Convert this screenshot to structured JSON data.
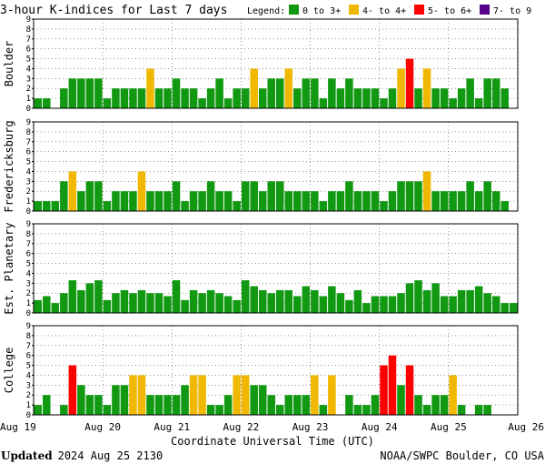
{
  "title": "3-hour K-indices for Last 7 days",
  "legend": {
    "label": "Legend:",
    "items": [
      {
        "text": "0 to 3+",
        "color": "#119911"
      },
      {
        "text": "4- to 4+",
        "color": "#f0b800"
      },
      {
        "text": "5- to 6+",
        "color": "#ff0000"
      },
      {
        "text": "7- to 9",
        "color": "#550088"
      }
    ]
  },
  "x_tick_labels": [
    "Aug 19",
    "Aug 20",
    "Aug 21",
    "Aug 22",
    "Aug 23",
    "Aug 24",
    "Aug 25",
    "Aug 26"
  ],
  "y_tick_labels": [
    "0",
    "1",
    "2",
    "3",
    "4",
    "5",
    "6",
    "7",
    "8",
    "9"
  ],
  "xlabel": "Coordinate Universal Time (UTC)",
  "footer": {
    "updated_label": "Updated",
    "updated_value": "2024 Aug 25 2130",
    "source": "NOAA/SWPC Boulder, CO USA"
  },
  "chart_data": [
    {
      "type": "bar",
      "station": "Boulder",
      "ylim": [
        0,
        9
      ],
      "x": "3-hour intervals from Aug 19 00 UTC",
      "values": [
        1,
        1,
        0,
        2,
        3,
        3,
        3,
        3,
        1,
        2,
        2,
        2,
        2,
        4,
        2,
        2,
        3,
        2,
        2,
        1,
        2,
        3,
        1,
        2,
        2,
        4,
        2,
        3,
        3,
        4,
        2,
        3,
        3,
        1,
        3,
        2,
        3,
        2,
        2,
        2,
        1,
        2,
        4,
        5,
        2,
        4,
        2,
        2,
        1,
        2,
        3,
        1,
        3,
        3,
        2,
        0
      ]
    },
    {
      "type": "bar",
      "station": "Fredericksburg",
      "ylim": [
        0,
        9
      ],
      "x": "3-hour intervals from Aug 19 00 UTC",
      "values": [
        1,
        1,
        1,
        3,
        4,
        2,
        3,
        3,
        1,
        2,
        2,
        2,
        4,
        2,
        2,
        2,
        3,
        1,
        2,
        2,
        3,
        2,
        2,
        1,
        3,
        3,
        2,
        3,
        3,
        2,
        2,
        2,
        2,
        1,
        2,
        2,
        3,
        2,
        2,
        2,
        1,
        2,
        3,
        3,
        3,
        4,
        2,
        2,
        2,
        2,
        3,
        2,
        3,
        2,
        1,
        0
      ]
    },
    {
      "type": "bar",
      "station": "Est. Planetary",
      "ylim": [
        0,
        9
      ],
      "x": "3-hour intervals from Aug 19 00 UTC",
      "values": [
        1.3,
        1.7,
        1,
        2,
        3.3,
        2.3,
        3,
        3.3,
        1.3,
        2,
        2.3,
        2,
        2.3,
        2,
        2,
        1.7,
        3.3,
        1.3,
        2.3,
        2,
        2.3,
        2,
        1.7,
        1.3,
        3.3,
        2.7,
        2.3,
        2,
        2.3,
        2.3,
        1.7,
        2.7,
        2.3,
        1.7,
        2.7,
        2,
        1.3,
        2.3,
        1,
        1.7,
        1.7,
        1.7,
        2,
        3,
        3.3,
        2.3,
        3,
        1.7,
        1.7,
        2.3,
        2.3,
        2.7,
        2,
        1.7,
        1,
        1
      ]
    },
    {
      "type": "bar",
      "station": "College",
      "ylim": [
        0,
        9
      ],
      "x": "3-hour intervals from Aug 19 00 UTC",
      "values": [
        1,
        2,
        0,
        1,
        5,
        3,
        2,
        2,
        1,
        3,
        3,
        4,
        4,
        2,
        2,
        2,
        2,
        3,
        4,
        4,
        1,
        1,
        2,
        4,
        4,
        3,
        3,
        2,
        1,
        2,
        2,
        2,
        4,
        1,
        4,
        0,
        2,
        1,
        1,
        2,
        5,
        6,
        3,
        5,
        2,
        1,
        2,
        2,
        4,
        1,
        0,
        1,
        1,
        0,
        0,
        0
      ]
    }
  ]
}
